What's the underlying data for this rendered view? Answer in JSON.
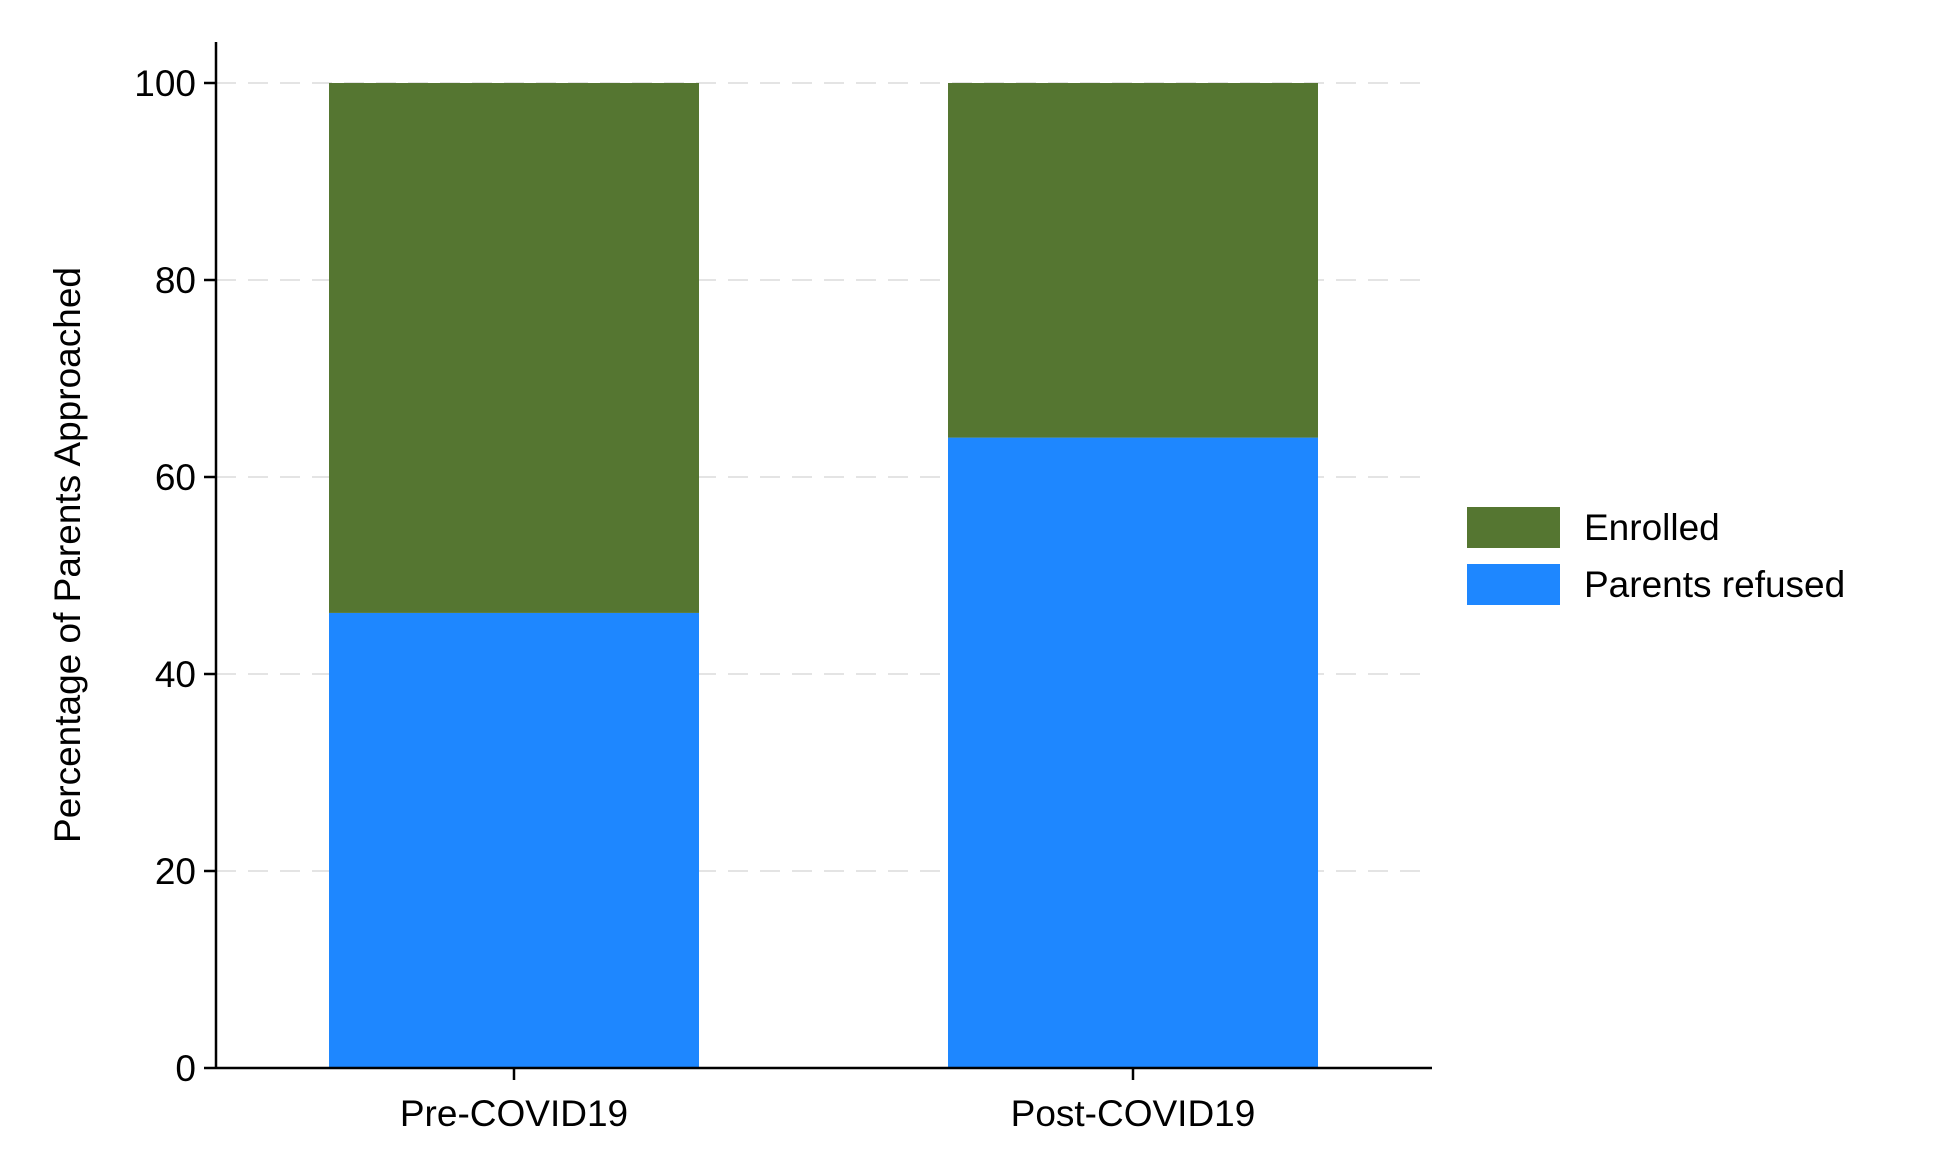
{
  "chart_data": {
    "type": "bar",
    "stacked": true,
    "categories": [
      "Pre-COVID19",
      "Post-COVID19"
    ],
    "series": [
      {
        "name": "Parents refused",
        "values": [
          46.2,
          64.0
        ],
        "color": "#1e87ff"
      },
      {
        "name": "Enrolled",
        "values": [
          53.8,
          36.0
        ],
        "color": "#557631"
      }
    ],
    "legend_order": [
      "Enrolled",
      "Parents refused"
    ],
    "title": "",
    "xlabel": "",
    "ylabel": "Percentage of Parents Approached",
    "ylim": [
      0,
      100
    ],
    "yticks": [
      0,
      20,
      40,
      60,
      80,
      100
    ],
    "grid": "horizontal dashed",
    "legend_position": "right"
  }
}
